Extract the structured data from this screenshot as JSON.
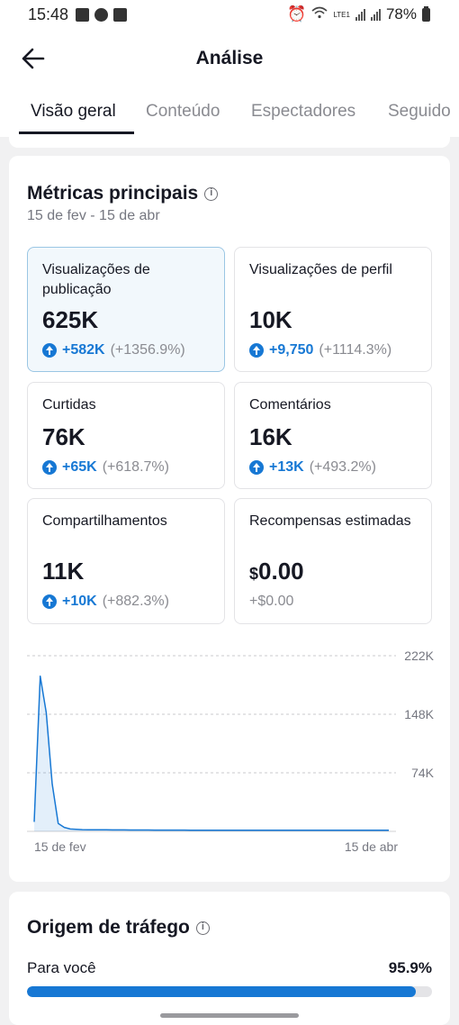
{
  "status_bar": {
    "time": "15:48",
    "battery": "78%",
    "network": "LTE1"
  },
  "app_bar": {
    "title": "Análise"
  },
  "tabs": [
    {
      "label": "Visão geral",
      "active": true
    },
    {
      "label": "Conteúdo",
      "active": false
    },
    {
      "label": "Espectadores",
      "active": false
    },
    {
      "label": "Seguido",
      "active": false
    }
  ],
  "key_metrics": {
    "title": "Métricas principais",
    "date_range": "15 de fev - 15 de abr",
    "tiles": [
      {
        "label": "Visualizações de publicação",
        "value": "625K",
        "delta_abs": "+582K",
        "delta_pct": "(+1356.9%)",
        "selected": true
      },
      {
        "label": "Visualizações de perfil",
        "value": "10K",
        "delta_abs": "+9,750",
        "delta_pct": "(+1114.3%)",
        "selected": false
      },
      {
        "label": "Curtidas",
        "value": "76K",
        "delta_abs": "+65K",
        "delta_pct": "(+618.7%)",
        "selected": false
      },
      {
        "label": "Comentários",
        "value": "16K",
        "delta_abs": "+13K",
        "delta_pct": "(+493.2%)",
        "selected": false
      },
      {
        "label": "Compartilhamentos",
        "value": "11K",
        "delta_abs": "+10K",
        "delta_pct": "(+882.3%)",
        "selected": false
      },
      {
        "label": "Recompensas estimadas",
        "currency": "$",
        "value": "0.00",
        "delta_plain": "+$0.00",
        "selected": false
      }
    ]
  },
  "chart_data": {
    "type": "area",
    "title": "",
    "xlabel": "",
    "ylabel": "",
    "x_tick_labels": [
      "15 de fev",
      "15 de abr"
    ],
    "y_tick_labels": [
      "222K",
      "148K",
      "74K"
    ],
    "y_ticks": [
      74000,
      148000,
      222000
    ],
    "ylim": [
      0,
      222000
    ],
    "grid": "dashed horizontal",
    "series": [
      {
        "color": "#1778d4",
        "values": [
          12000,
          196000,
          150000,
          60000,
          10000,
          5000,
          3000,
          2500,
          2200,
          2000,
          2000,
          1900,
          1900,
          1800,
          1800,
          1800,
          1700,
          1700,
          1700,
          1700,
          1600,
          1600,
          1600,
          1600,
          1600,
          1600,
          1500,
          1500,
          1500,
          1500,
          1500,
          1500,
          1500,
          1500,
          1500,
          1500,
          1500,
          1500,
          1500,
          1500,
          1500,
          1500,
          1500,
          1500,
          1500,
          1500,
          1500,
          1500,
          1500,
          1500,
          1500,
          1500,
          1500,
          1500,
          1500,
          1500,
          1500,
          1500,
          1500,
          1500
        ]
      }
    ]
  },
  "traffic": {
    "title": "Origem de tráfego",
    "rows": [
      {
        "label": "Para você",
        "value": "95.9%",
        "fraction": 0.959
      }
    ]
  },
  "colors": {
    "accent": "#1778d4",
    "text": "#161823",
    "muted": "#8a8b91"
  }
}
